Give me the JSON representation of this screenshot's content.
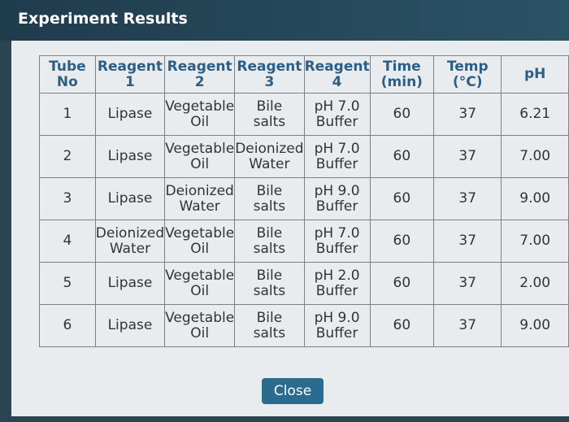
{
  "header": {
    "title": "Experiment Results"
  },
  "table": {
    "columns": [
      [
        "Tube",
        "No"
      ],
      [
        "Reagent",
        "1"
      ],
      [
        "Reagent",
        "2"
      ],
      [
        "Reagent",
        "3"
      ],
      [
        "Reagent",
        "4"
      ],
      [
        "Time",
        "(min)"
      ],
      [
        "Temp",
        "(°C)"
      ],
      [
        "pH"
      ]
    ],
    "rows": [
      [
        [
          "1"
        ],
        [
          "Lipase"
        ],
        [
          "Vegetable",
          "Oil"
        ],
        [
          "Bile",
          "salts"
        ],
        [
          "pH 7.0",
          "Buffer"
        ],
        [
          "60"
        ],
        [
          "37"
        ],
        [
          "6.21"
        ]
      ],
      [
        [
          "2"
        ],
        [
          "Lipase"
        ],
        [
          "Vegetable",
          "Oil"
        ],
        [
          "Deionized",
          "Water"
        ],
        [
          "pH 7.0",
          "Buffer"
        ],
        [
          "60"
        ],
        [
          "37"
        ],
        [
          "7.00"
        ]
      ],
      [
        [
          "3"
        ],
        [
          "Lipase"
        ],
        [
          "Deionized",
          "Water"
        ],
        [
          "Bile",
          "salts"
        ],
        [
          "pH 9.0",
          "Buffer"
        ],
        [
          "60"
        ],
        [
          "37"
        ],
        [
          "9.00"
        ]
      ],
      [
        [
          "4"
        ],
        [
          "Deionized",
          "Water"
        ],
        [
          "Vegetable",
          "Oil"
        ],
        [
          "Bile",
          "salts"
        ],
        [
          "pH 7.0",
          "Buffer"
        ],
        [
          "60"
        ],
        [
          "37"
        ],
        [
          "7.00"
        ]
      ],
      [
        [
          "5"
        ],
        [
          "Lipase"
        ],
        [
          "Vegetable",
          "Oil"
        ],
        [
          "Bile",
          "salts"
        ],
        [
          "pH 2.0",
          "Buffer"
        ],
        [
          "60"
        ],
        [
          "37"
        ],
        [
          "2.00"
        ]
      ],
      [
        [
          "6"
        ],
        [
          "Lipase"
        ],
        [
          "Vegetable",
          "Oil"
        ],
        [
          "Bile",
          "salts"
        ],
        [
          "pH 9.0",
          "Buffer"
        ],
        [
          "60"
        ],
        [
          "37"
        ],
        [
          "9.00"
        ]
      ]
    ]
  },
  "button": {
    "label": "Close"
  }
}
